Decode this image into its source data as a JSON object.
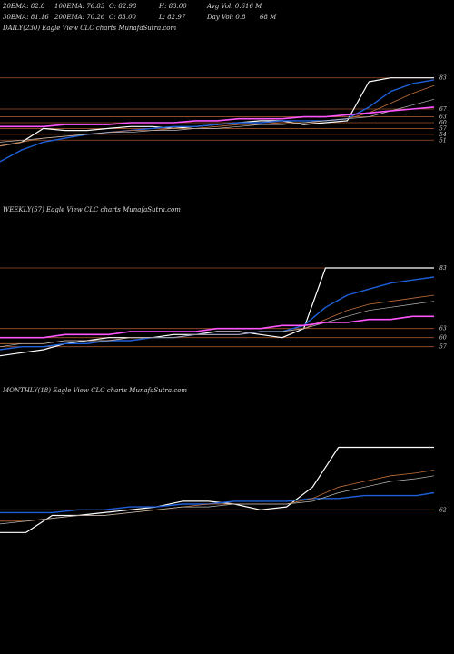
{
  "header": {
    "row1": [
      "20EMA: 82.8",
      "100EMA: 76.83",
      "O: 82.98",
      "H: 83.00",
      "Avg Vol: 0.616  M"
    ],
    "row2": [
      "30EMA: 81.16",
      "200EMA: 70.26",
      "C: 83.00",
      "L: 82.97",
      "Day Vol: 0.8",
      "68  M"
    ]
  },
  "colors": {
    "background": "#000000",
    "price": "#ffffff",
    "ema_short": "#1e5fd8",
    "ema_long": "#ff55ff",
    "level": "#a0522d",
    "ema_mid": "#c0703a"
  },
  "chart_data": [
    {
      "type": "line",
      "label": "DAILY(230) Eagle  View  CLC charts MunafaSutra.com",
      "ylim": [
        25,
        88
      ],
      "levels": [
        83,
        67,
        63,
        60,
        57,
        54,
        51
      ],
      "tick_labels": [
        "83",
        "67",
        "63",
        "60",
        "57",
        "54",
        "51"
      ],
      "x": [
        0,
        5,
        10,
        15,
        20,
        25,
        30,
        35,
        40,
        45,
        50,
        55,
        60,
        65,
        70,
        75,
        80,
        85,
        90,
        95,
        100
      ],
      "series": [
        {
          "role": "price",
          "values": [
            48,
            50,
            57,
            56,
            56,
            57,
            58,
            58,
            57,
            58,
            59,
            60,
            61,
            61,
            59,
            60,
            61,
            81,
            83,
            83,
            83
          ]
        },
        {
          "role": "ema_short",
          "values": [
            40,
            46,
            50,
            52,
            54,
            55,
            56,
            57,
            58,
            58,
            59,
            60,
            60,
            61,
            61,
            61,
            62,
            68,
            76,
            80,
            82
          ]
        },
        {
          "role": "ema_mid",
          "values": [
            48,
            50,
            52,
            53,
            54,
            55,
            56,
            56,
            57,
            57,
            58,
            59,
            59,
            60,
            60,
            61,
            62,
            65,
            70,
            75,
            79
          ]
        },
        {
          "role": "ema_mid2",
          "values": [
            50,
            51,
            52,
            53,
            54,
            55,
            55,
            56,
            56,
            57,
            57,
            58,
            59,
            59,
            60,
            61,
            62,
            63,
            66,
            69,
            72
          ]
        },
        {
          "role": "ema_long",
          "values": [
            58,
            58,
            58,
            59,
            59,
            59,
            60,
            60,
            60,
            61,
            61,
            62,
            62,
            62,
            63,
            63,
            64,
            65,
            66,
            67,
            68
          ]
        }
      ]
    },
    {
      "type": "line",
      "label": "WEEKLY(57) Eagle  View  CLC charts MunafaSutra.com",
      "ylim": [
        50,
        86
      ],
      "levels": [
        83,
        63,
        60,
        57
      ],
      "tick_labels": [
        "83",
        "63",
        "60",
        "57"
      ],
      "x": [
        0,
        5,
        10,
        15,
        20,
        25,
        30,
        35,
        40,
        45,
        50,
        55,
        60,
        65,
        70,
        75,
        80,
        85,
        90,
        95,
        100
      ],
      "series": [
        {
          "role": "price",
          "values": [
            54,
            55,
            56,
            58,
            59,
            60,
            60,
            60,
            61,
            61,
            62,
            62,
            61,
            60,
            63,
            83,
            83,
            83,
            83,
            83,
            83
          ]
        },
        {
          "role": "ema_short",
          "values": [
            56,
            57,
            57,
            58,
            58,
            59,
            59,
            60,
            60,
            61,
            61,
            61,
            62,
            62,
            64,
            70,
            74,
            76,
            78,
            79,
            80
          ]
        },
        {
          "role": "ema_mid",
          "values": [
            58,
            58,
            58,
            59,
            59,
            59,
            60,
            60,
            60,
            61,
            61,
            61,
            62,
            62,
            63,
            66,
            69,
            71,
            72,
            73,
            74
          ]
        },
        {
          "role": "ema_mid2",
          "values": [
            57,
            58,
            58,
            59,
            59,
            59,
            60,
            60,
            60,
            61,
            61,
            61,
            62,
            62,
            63,
            65,
            67,
            69,
            70,
            71,
            72
          ]
        },
        {
          "role": "ema_long",
          "values": [
            60,
            60,
            60,
            61,
            61,
            61,
            62,
            62,
            62,
            62,
            63,
            63,
            63,
            64,
            64,
            65,
            65,
            66,
            66,
            67,
            67
          ]
        }
      ]
    },
    {
      "type": "line",
      "label": "MONTHLY(18) Eagle  View  CLC charts MunafaSutra.com",
      "ylim": [
        48,
        88
      ],
      "levels": [
        62
      ],
      "tick_labels": [
        "62"
      ],
      "x": [
        0,
        6,
        12,
        18,
        24,
        30,
        36,
        42,
        48,
        54,
        60,
        66,
        72,
        78,
        84,
        90,
        96,
        100
      ],
      "series": [
        {
          "role": "price",
          "values": [
            54,
            54,
            60,
            60,
            61,
            62,
            63,
            65,
            65,
            64,
            62,
            63,
            70,
            84,
            84,
            84,
            84,
            84
          ]
        },
        {
          "role": "ema_short",
          "values": [
            61,
            61,
            61,
            62,
            62,
            63,
            63,
            64,
            64,
            65,
            65,
            65,
            66,
            66,
            67,
            67,
            67,
            68
          ]
        },
        {
          "role": "ema_mid",
          "values": [
            58,
            58,
            59,
            60,
            60,
            61,
            62,
            63,
            64,
            64,
            64,
            64,
            66,
            70,
            72,
            74,
            75,
            76
          ]
        },
        {
          "role": "ema_mid2",
          "values": [
            57,
            58,
            59,
            60,
            60,
            61,
            62,
            63,
            63,
            64,
            64,
            64,
            65,
            68,
            70,
            72,
            73,
            74
          ]
        }
      ]
    }
  ]
}
